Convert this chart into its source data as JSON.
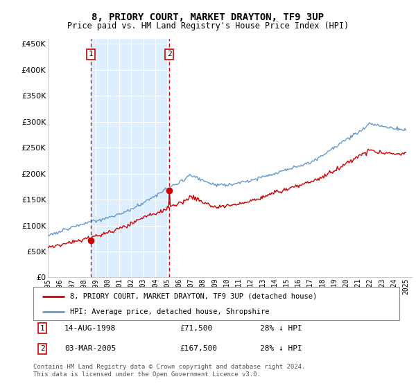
{
  "title": "8, PRIORY COURT, MARKET DRAYTON, TF9 3UP",
  "subtitle": "Price paid vs. HM Land Registry's House Price Index (HPI)",
  "legend_entry1": "8, PRIORY COURT, MARKET DRAYTON, TF9 3UP (detached house)",
  "legend_entry2": "HPI: Average price, detached house, Shropshire",
  "footer": "Contains HM Land Registry data © Crown copyright and database right 2024.\nThis data is licensed under the Open Government Licence v3.0.",
  "transaction1": {
    "label": "1",
    "date": "14-AUG-1998",
    "price": 71500,
    "pct": "28% ↓ HPI"
  },
  "transaction2": {
    "label": "2",
    "date": "03-MAR-2005",
    "price": 167500,
    "pct": "28% ↓ HPI"
  },
  "vline1_x": 1998.62,
  "vline2_x": 2005.17,
  "hpi_color": "#6699cc",
  "price_color": "#cc0000",
  "shade_color": "#ddeeff",
  "background_color": "#ffffff",
  "ylim": [
    0,
    460000
  ],
  "yticks": [
    0,
    50000,
    100000,
    150000,
    200000,
    250000,
    300000,
    350000,
    400000,
    450000
  ],
  "xlim": [
    1995.0,
    2025.5
  ],
  "xticks": [
    1995,
    1996,
    1997,
    1998,
    1999,
    2000,
    2001,
    2002,
    2003,
    2004,
    2005,
    2006,
    2007,
    2008,
    2009,
    2010,
    2011,
    2012,
    2013,
    2014,
    2015,
    2016,
    2017,
    2018,
    2019,
    2020,
    2021,
    2022,
    2023,
    2024,
    2025
  ]
}
